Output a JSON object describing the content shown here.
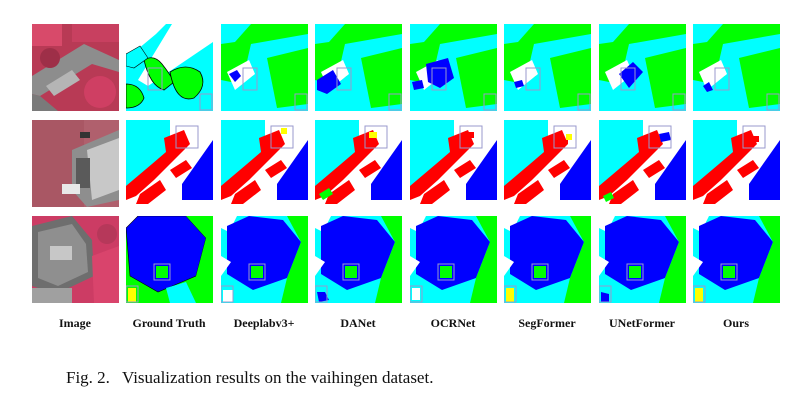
{
  "columns": [
    "Image",
    "Ground Truth",
    "Deeplabv3+",
    "DANet",
    "OCRNet",
    "SegFormer",
    "UNetFormer",
    "Ours"
  ],
  "caption": {
    "label": "Fig. 2.",
    "text": "Visualization results on the vaihingen dataset."
  },
  "legend_colors": {
    "impervious_surface": "#ffffff",
    "building": "#0000ff",
    "low_vegetation": "#00ffff",
    "tree": "#00ff00",
    "car": "#ffff00",
    "clutter": "#ff0000",
    "highlight_box": "#9999cc"
  }
}
